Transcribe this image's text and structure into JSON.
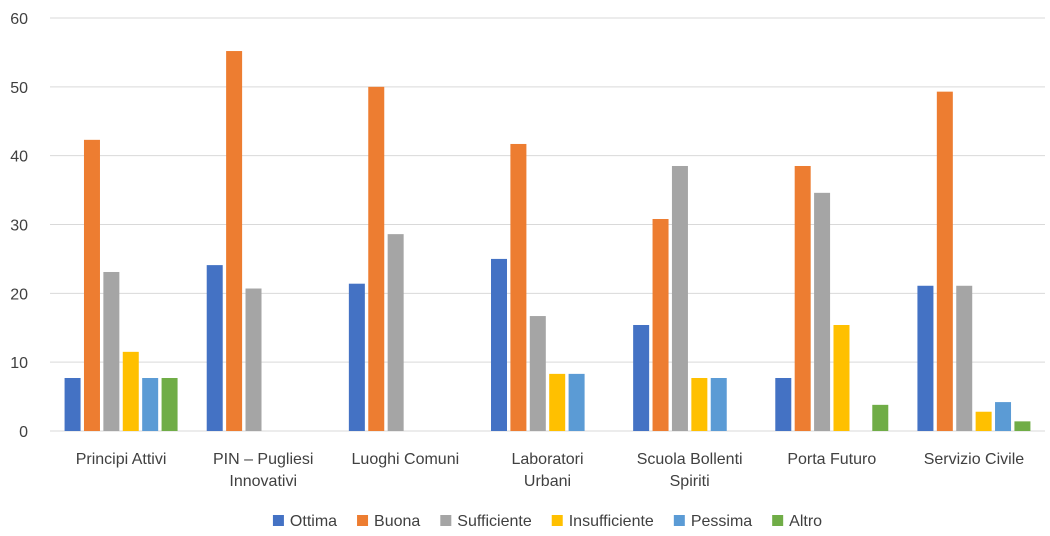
{
  "chart_data": {
    "type": "bar",
    "categories": [
      [
        "Principi Attivi"
      ],
      [
        "PIN – Pugliesi",
        "Innovativi"
      ],
      [
        "Luoghi Comuni"
      ],
      [
        "Laboratori",
        "Urbani"
      ],
      [
        "Scuola Bollenti",
        "Spiriti"
      ],
      [
        "Porta Futuro"
      ],
      [
        "Servizio Civile"
      ]
    ],
    "series": [
      {
        "name": "Ottima",
        "color": "#4472c4",
        "values": [
          7.7,
          24.1,
          21.4,
          25.0,
          15.4,
          7.7,
          21.1
        ]
      },
      {
        "name": "Buona",
        "color": "#ed7d31",
        "values": [
          42.3,
          55.2,
          50.0,
          41.7,
          30.8,
          38.5,
          49.3
        ]
      },
      {
        "name": "Sufficiente",
        "color": "#a5a5a5",
        "values": [
          23.1,
          20.7,
          28.6,
          16.7,
          38.5,
          34.6,
          21.1
        ]
      },
      {
        "name": "Insufficiente",
        "color": "#ffc000",
        "values": [
          11.5,
          0,
          0,
          8.3,
          7.7,
          15.4,
          2.8
        ]
      },
      {
        "name": "Pessima",
        "color": "#5b9bd5",
        "values": [
          7.7,
          0,
          0,
          8.3,
          7.7,
          0,
          4.2
        ]
      },
      {
        "name": "Altro",
        "color": "#70ad47",
        "values": [
          7.7,
          0,
          0,
          0,
          0,
          3.8,
          1.4
        ]
      }
    ],
    "y_ticks": [
      "0",
      "10",
      "20",
      "30",
      "40",
      "50",
      "60"
    ],
    "ylim": [
      0,
      60
    ],
    "grid": true,
    "legend_position": "bottom"
  }
}
